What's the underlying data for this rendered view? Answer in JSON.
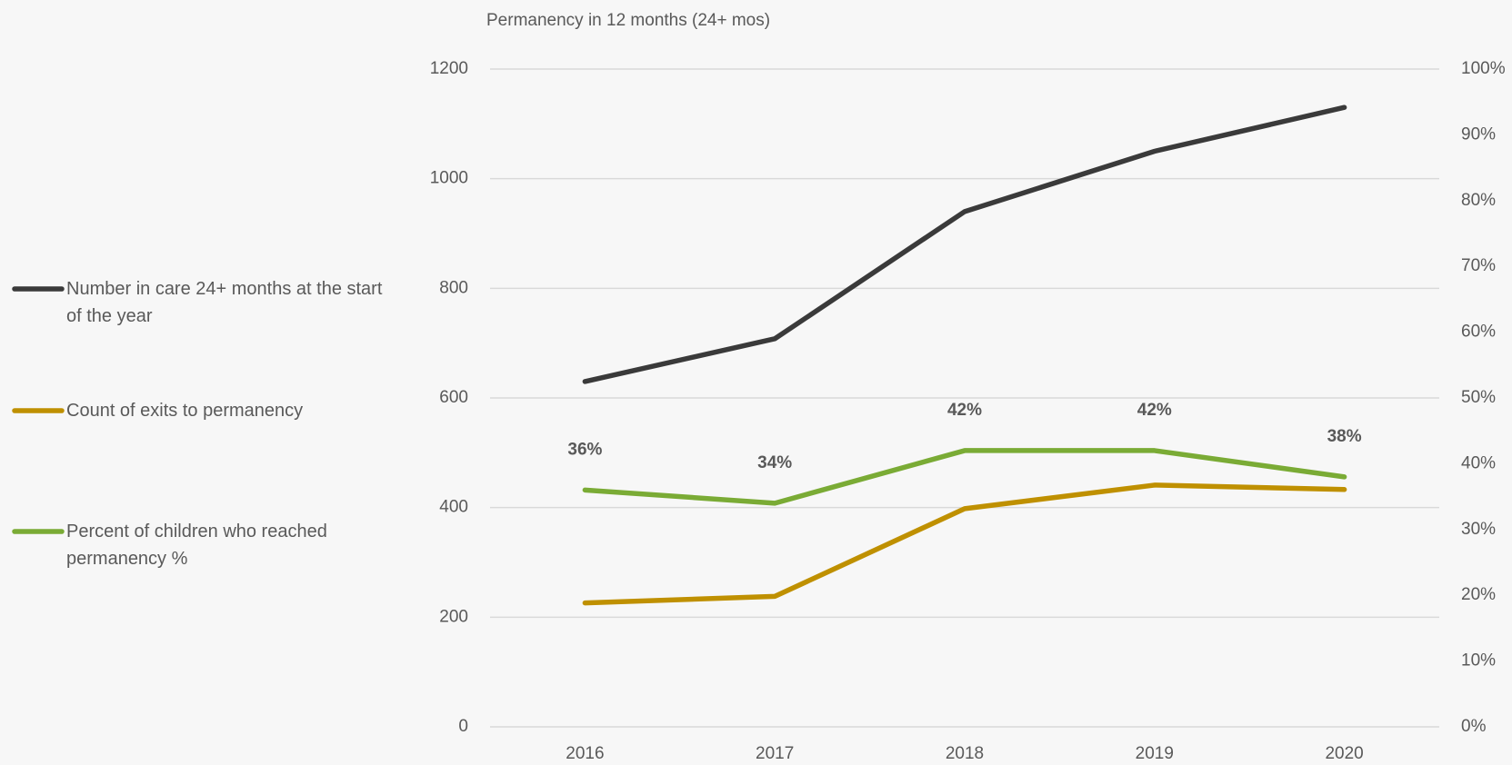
{
  "chart_data": {
    "type": "line",
    "title": "Permanency in 12 months (24+ mos)",
    "categories": [
      "2016",
      "2017",
      "2018",
      "2019",
      "2020"
    ],
    "series": [
      {
        "name": "Number in care 24+ months at the start of the year",
        "color": "#3a3a3a",
        "values": [
          630,
          708,
          940,
          1050,
          1130
        ]
      },
      {
        "name": "Count of exits to permanency",
        "color": "#bf9000",
        "values": [
          226,
          238,
          398,
          441,
          433
        ]
      },
      {
        "name": "Percent of children who reached permanency %",
        "color": "#7aab35",
        "axis": "y2",
        "values": [
          36,
          34,
          42,
          42,
          38
        ],
        "value_labels": [
          "36%",
          "34%",
          "42%",
          "42%",
          "38%"
        ]
      }
    ],
    "ylim": [
      0,
      1200
    ],
    "yticks": [
      0,
      200,
      400,
      600,
      800,
      1000,
      1200
    ],
    "y2lim": [
      0,
      100
    ],
    "y2ticks": [
      {
        "value": 0,
        "label": "0%"
      },
      {
        "value": 10,
        "label": "10%"
      },
      {
        "value": 20,
        "label": "20%"
      },
      {
        "value": 30,
        "label": "30%"
      },
      {
        "value": 40,
        "label": "40%"
      },
      {
        "value": 50,
        "label": "50%"
      },
      {
        "value": 60,
        "label": "60%"
      },
      {
        "value": 70,
        "label": "70%"
      },
      {
        "value": 80,
        "label": "80%"
      },
      {
        "value": 90,
        "label": "90%"
      },
      {
        "value": 100,
        "label": "100%"
      }
    ],
    "grid": true,
    "legend": "left"
  }
}
